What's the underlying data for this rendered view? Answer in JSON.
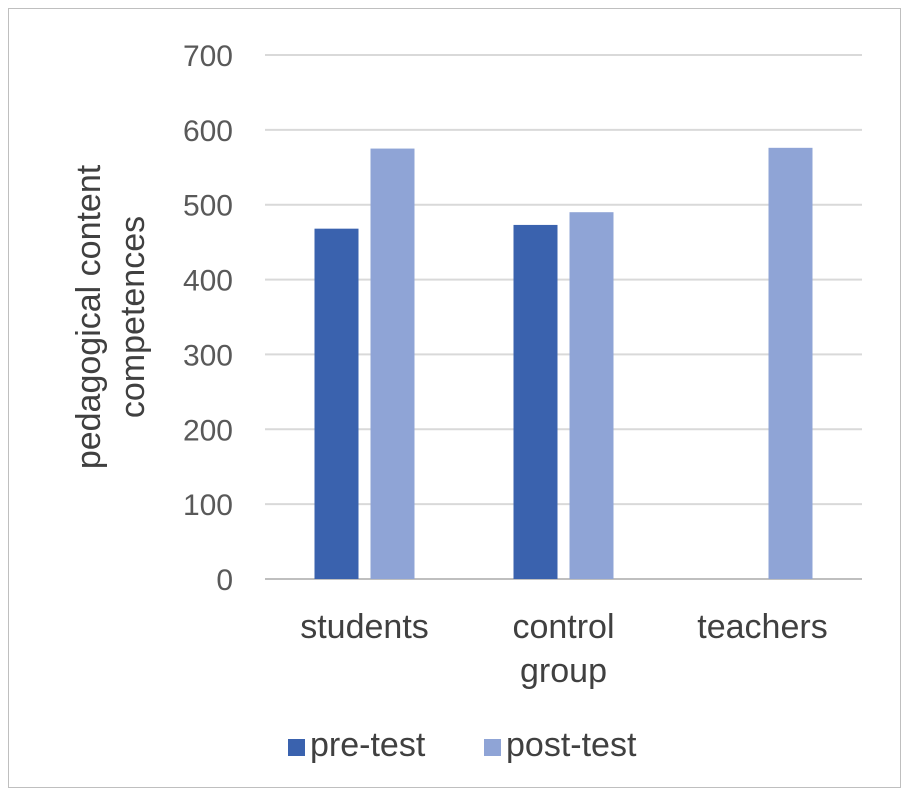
{
  "chart_data": {
    "type": "bar",
    "title": "",
    "xlabel": "",
    "ylabel_lines": [
      "pedagogical content",
      "competences"
    ],
    "ylim": [
      0,
      700
    ],
    "yticks": [
      0,
      100,
      200,
      300,
      400,
      500,
      600,
      700
    ],
    "grid": true,
    "legend_position": "bottom",
    "categories": [
      {
        "lines": [
          "students"
        ]
      },
      {
        "lines": [
          "control",
          "group"
        ]
      },
      {
        "lines": [
          "teachers"
        ]
      }
    ],
    "series": [
      {
        "name": "pre-test",
        "color": "#3a62ae",
        "values": [
          468,
          473,
          null
        ]
      },
      {
        "name": "post-test",
        "color": "#8fa4d6",
        "values": [
          575,
          490,
          576
        ]
      }
    ]
  }
}
